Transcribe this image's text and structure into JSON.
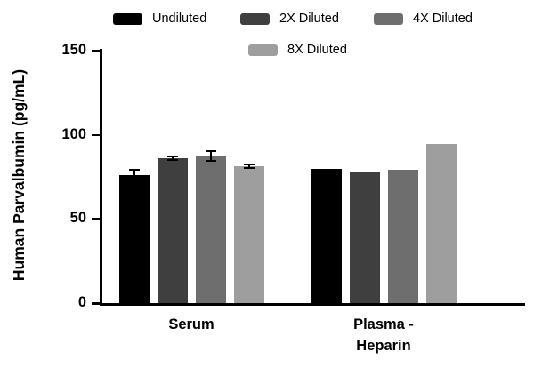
{
  "legend": {
    "items": [
      {
        "label": "Undiluted",
        "color": "#000000"
      },
      {
        "label": "2X Diluted",
        "color": "#3f3f3f"
      },
      {
        "label": "4X Diluted",
        "color": "#6e6e6e"
      },
      {
        "label": "8X Diluted",
        "color": "#9e9e9e"
      }
    ]
  },
  "chart_data": {
    "type": "bar",
    "title": "",
    "xlabel": "",
    "ylabel": "Human Parvalbumin (pg/mL)",
    "ylim": [
      0,
      150
    ],
    "yticks": [
      0,
      50,
      100,
      150
    ],
    "grid": false,
    "legend_position": "top",
    "categories": [
      "Serum",
      "Plasma -\nHeparin"
    ],
    "series": [
      {
        "name": "Undiluted",
        "color": "#000000",
        "values": [
          76,
          80
        ],
        "errors": [
          3,
          0
        ]
      },
      {
        "name": "2X Diluted",
        "color": "#3f3f3f",
        "values": [
          86,
          78
        ],
        "errors": [
          1,
          0
        ]
      },
      {
        "name": "4X Diluted",
        "color": "#6e6e6e",
        "values": [
          87.5,
          79
        ],
        "errors": [
          3,
          0
        ]
      },
      {
        "name": "8X Diluted",
        "color": "#9e9e9e",
        "values": [
          81.5,
          94.5
        ],
        "errors": [
          1,
          0
        ]
      }
    ]
  }
}
